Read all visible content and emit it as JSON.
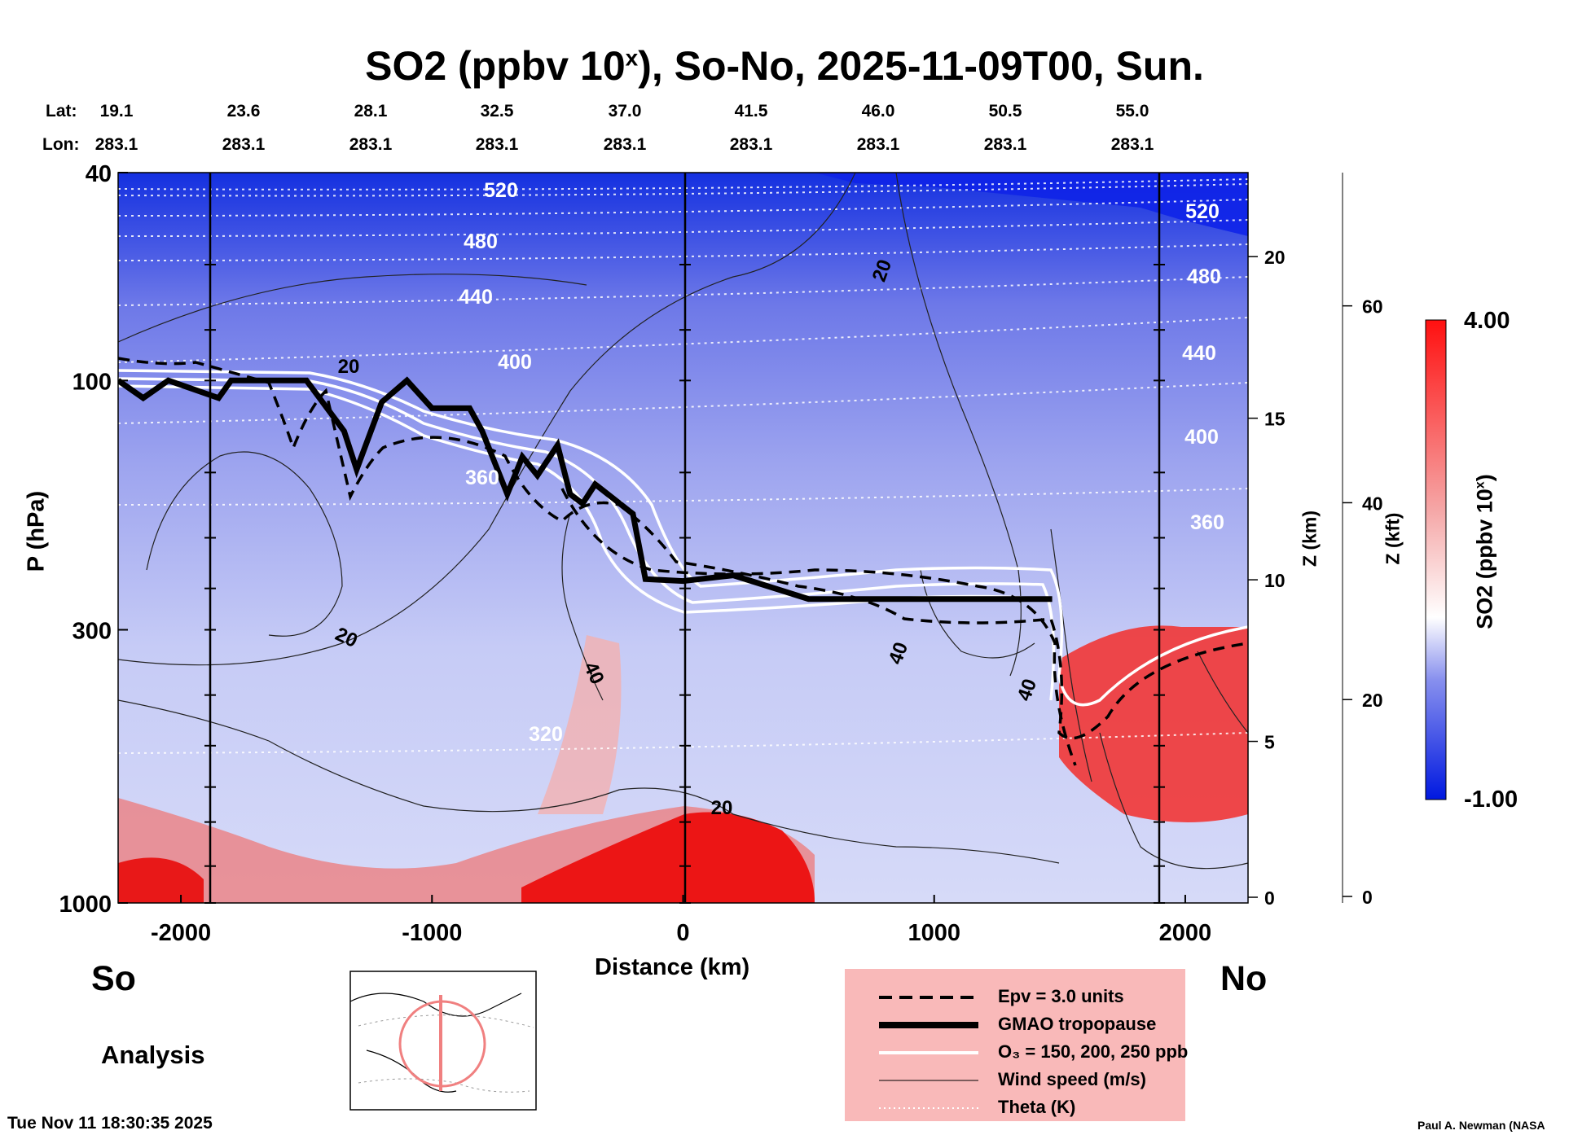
{
  "title_main": "SO2 (ppbv 10",
  "title_sup": "x",
  "title_rest": "), So-No, 2025-11-09T00, Sun.",
  "header": {
    "lat_label": "Lat:",
    "lon_label": "Lon:",
    "lats": [
      "19.1",
      "23.6",
      "28.1",
      "32.5",
      "37.0",
      "41.5",
      "46.0",
      "50.5",
      "55.0"
    ],
    "lons": [
      "283.1",
      "283.1",
      "283.1",
      "283.1",
      "283.1",
      "283.1",
      "283.1",
      "283.1",
      "283.1"
    ]
  },
  "side_labels": {
    "south": "So",
    "north": "No",
    "analysis": "Analysis"
  },
  "footer": {
    "date": "Tue Nov 11 18:30:35 2025",
    "credit": "Paul A. Newman (NASA"
  },
  "legend": [
    {
      "label": "Epv = 3.0 units",
      "style": "dashed"
    },
    {
      "label": "GMAO tropopause",
      "style": "thick"
    },
    {
      "label": "O₃ = 150, 200, 250 ppb",
      "style": "white"
    },
    {
      "label": "Wind speed (m/s)",
      "style": "thin"
    },
    {
      "label": "Theta (K)",
      "style": "dotted"
    }
  ],
  "colors": {
    "negative": "#0018e0",
    "neutral": "#ffffff",
    "positive": "#ff1010",
    "legend_bg": "#f9b9b9"
  },
  "chart_data": {
    "type": "heatmap",
    "title": "SO2 (ppbv 10^x), So-No, 2025-11-09T00, Sun.",
    "xlabel": "Distance (km)",
    "ylabel": "P (hPa)",
    "right_axis_1_label": "Z (km)",
    "right_axis_2_label": "Z (kft)",
    "xlim": [
      -2250,
      2250
    ],
    "ylim": [
      1000,
      40
    ],
    "y_scale": "log",
    "x_ticks": [
      -2000,
      -1000,
      0,
      1000,
      2000
    ],
    "y_ticks": [
      40,
      100,
      300,
      1000
    ],
    "z_km_ticks": [
      0,
      5,
      10,
      15,
      20
    ],
    "z_kft_ticks": [
      0,
      20,
      40,
      60
    ],
    "colorbar": {
      "label": "SO2 (ppbv 10",
      "label_sup": "x",
      "label_end": ")",
      "min": "-1.00",
      "max": "4.00",
      "vmin": -1,
      "vmax": 4
    },
    "tropopause_hpa": [
      [
        -2250,
        100
      ],
      [
        -2150,
        108
      ],
      [
        -2050,
        100
      ],
      [
        -1850,
        108
      ],
      [
        -1800,
        100
      ],
      [
        -1500,
        100
      ],
      [
        -1350,
        125
      ],
      [
        -1300,
        148
      ],
      [
        -1200,
        110
      ],
      [
        -1100,
        100
      ],
      [
        -1000,
        113
      ],
      [
        -850,
        113
      ],
      [
        -800,
        125
      ],
      [
        -700,
        165
      ],
      [
        -640,
        140
      ],
      [
        -580,
        152
      ],
      [
        -500,
        133
      ],
      [
        -450,
        165
      ],
      [
        -400,
        172
      ],
      [
        -350,
        158
      ],
      [
        -200,
        180
      ],
      [
        -150,
        240
      ],
      [
        0,
        242
      ],
      [
        200,
        236
      ],
      [
        500,
        262
      ],
      [
        900,
        262
      ],
      [
        1200,
        262
      ],
      [
        1470,
        262
      ]
    ],
    "theta_levels_K": [
      320,
      360,
      400,
      440,
      480,
      520
    ],
    "wind_speed_labels_ms": [
      20,
      20,
      20,
      20,
      40,
      40,
      40
    ],
    "o3_contours_ppb": [
      150,
      200,
      250
    ],
    "epv_contour": 3.0
  }
}
